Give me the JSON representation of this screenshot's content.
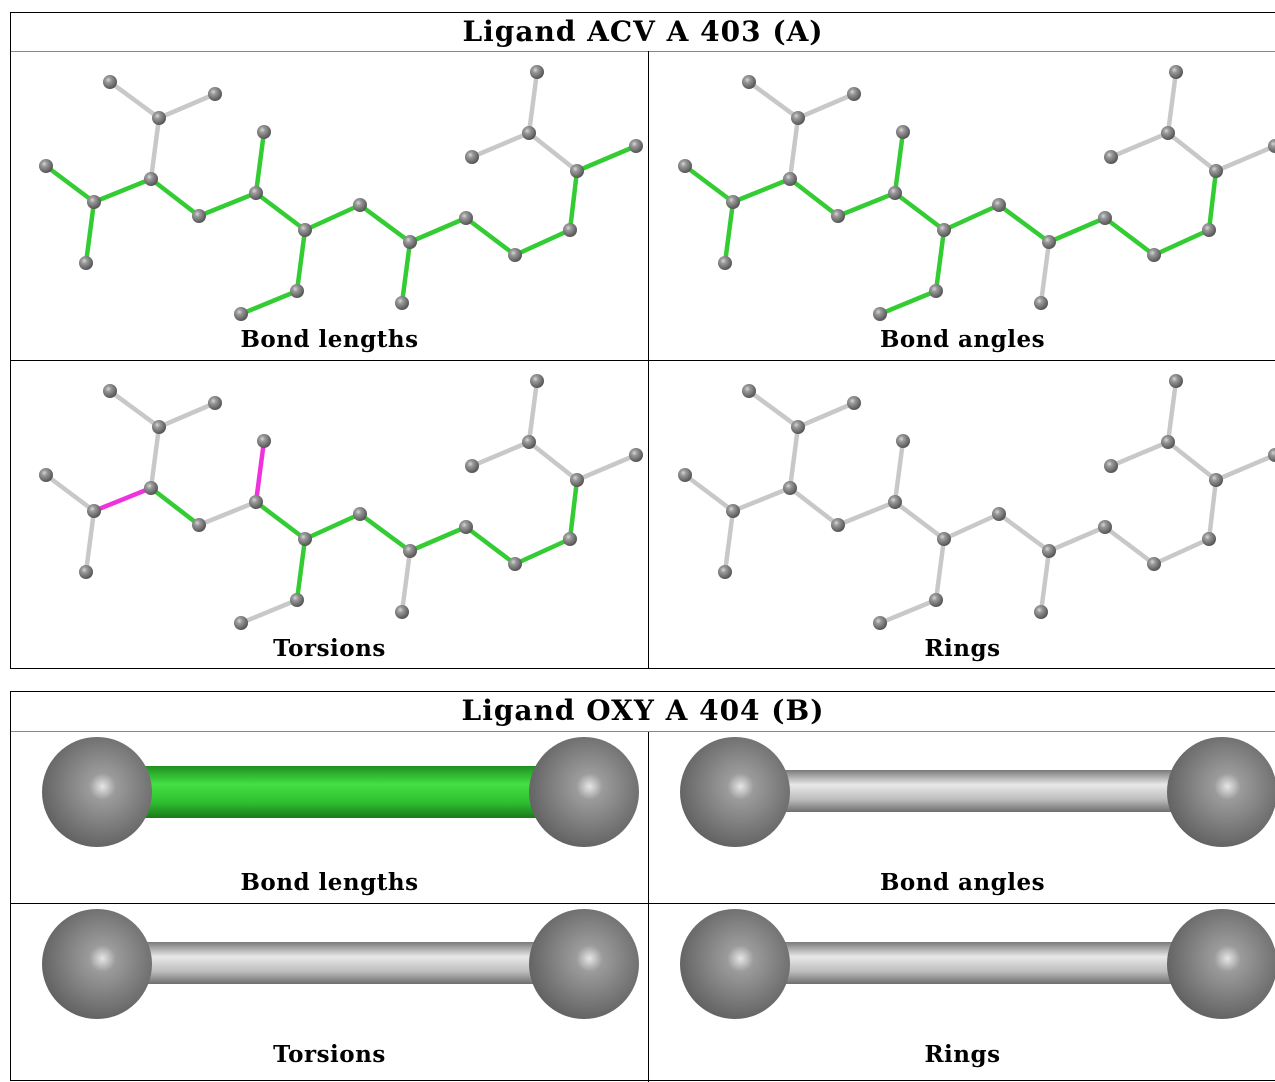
{
  "ligand_a": {
    "title": "Ligand ACV A 403 (A)",
    "panels": [
      {
        "caption": "Bond lengths",
        "highlight": "lengths"
      },
      {
        "caption": "Bond angles",
        "highlight": "angles"
      },
      {
        "caption": "Torsions",
        "highlight": "torsions"
      },
      {
        "caption": "Rings",
        "highlight": "none"
      }
    ]
  },
  "ligand_b": {
    "title": "Ligand OXY A 404 (B)",
    "panels": [
      {
        "caption": "Bond lengths",
        "bond_color": "green"
      },
      {
        "caption": "Bond angles",
        "bond_color": "gray"
      },
      {
        "caption": "Torsions",
        "bond_color": "gray"
      },
      {
        "caption": "Rings",
        "bond_color": "gray"
      }
    ]
  },
  "colors": {
    "ok_bond": "#33cc33",
    "outlier_bond": "#ee33dd",
    "plain_bond": "#c8c8c8",
    "atom": "#7a7a7a"
  }
}
